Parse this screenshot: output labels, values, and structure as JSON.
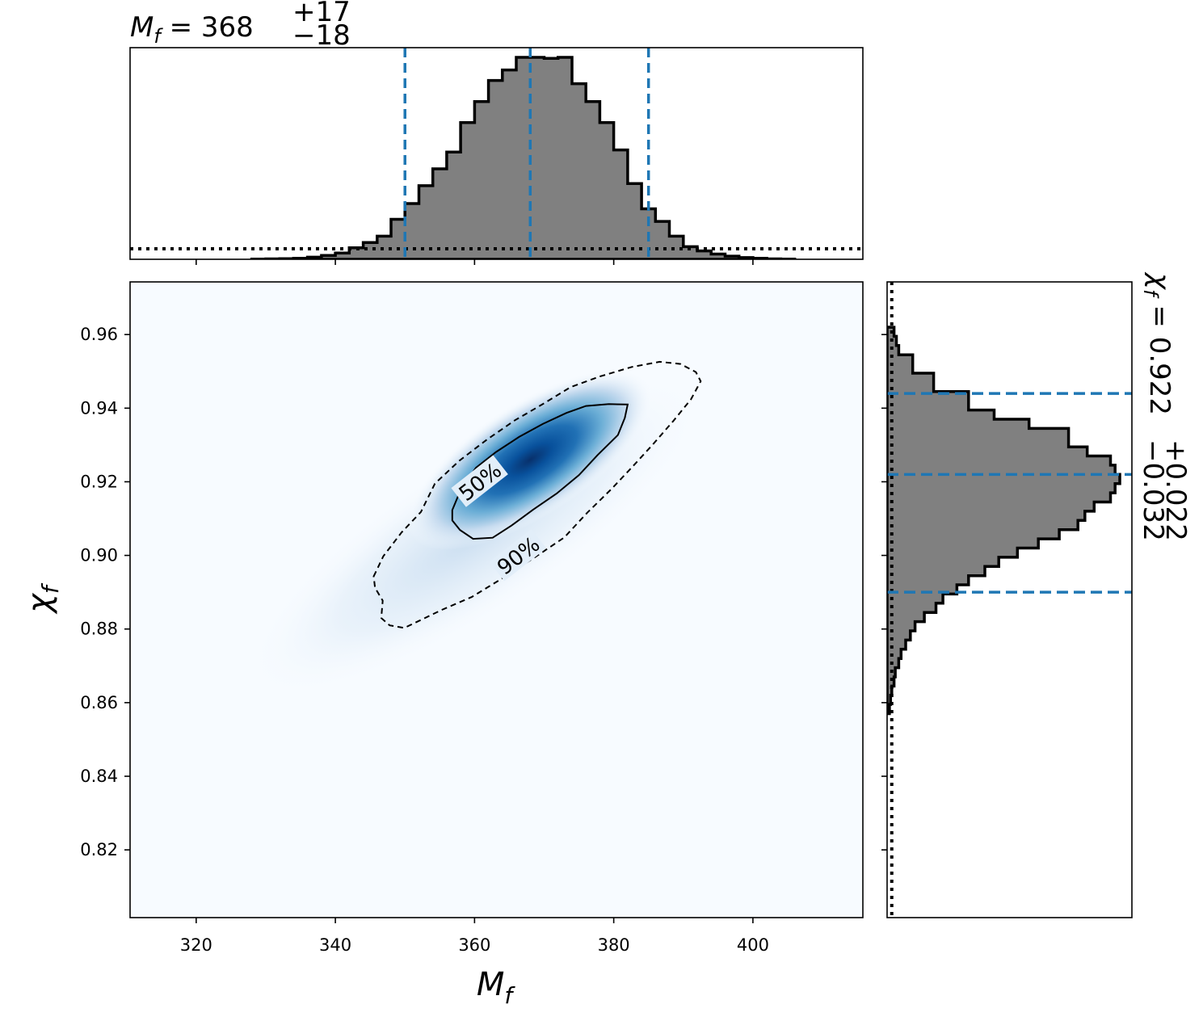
{
  "chart_data": [
    {
      "type": "heatmap",
      "panel": "joint",
      "xlabel_base": "M",
      "xlabel_sub": "f",
      "ylabel_base": "χ",
      "ylabel_sub": "f",
      "xlim": [
        310.5,
        415.8
      ],
      "ylim": [
        0.8016,
        0.9743
      ],
      "xticks": [
        320,
        340,
        360,
        380,
        400
      ],
      "xtick_labels": [
        "320",
        "340",
        "360",
        "380",
        "400"
      ],
      "yticks": [
        0.82,
        0.84,
        0.86,
        0.88,
        0.9,
        0.92,
        0.94,
        0.96
      ],
      "ytick_labels": [
        "0.82",
        "0.84",
        "0.86",
        "0.88",
        "0.90",
        "0.92",
        "0.94",
        "0.96"
      ],
      "colormap": "Blues",
      "density_peak": {
        "x": 368,
        "y": 0.926
      },
      "contours": [
        {
          "level": "50%",
          "linestyle": "solid",
          "points": [
            [
              356.8,
              0.9123
            ],
            [
              358.1,
              0.9182
            ],
            [
              360.2,
              0.9238
            ],
            [
              363.1,
              0.9281
            ],
            [
              366.4,
              0.9322
            ],
            [
              369.8,
              0.9357
            ],
            [
              373.2,
              0.9387
            ],
            [
              376.0,
              0.9406
            ],
            [
              379.3,
              0.9411
            ],
            [
              382.0,
              0.941
            ],
            [
              381.6,
              0.9374
            ],
            [
              380.6,
              0.9327
            ],
            [
              377.7,
              0.9273
            ],
            [
              375.0,
              0.9218
            ],
            [
              371.8,
              0.9168
            ],
            [
              368.4,
              0.9124
            ],
            [
              365.3,
              0.9081
            ],
            [
              362.6,
              0.9048
            ],
            [
              359.8,
              0.9045
            ],
            [
              357.9,
              0.9069
            ],
            [
              356.8,
              0.9095
            ]
          ]
        },
        {
          "level": "90%",
          "linestyle": "dashed",
          "points": [
            [
              345.5,
              0.8943
            ],
            [
              346.9,
              0.8998
            ],
            [
              349.5,
              0.9062
            ],
            [
              352.3,
              0.9118
            ],
            [
              354.3,
              0.9195
            ],
            [
              357.8,
              0.9257
            ],
            [
              361.6,
              0.9312
            ],
            [
              365.8,
              0.9367
            ],
            [
              369.8,
              0.9411
            ],
            [
              373.8,
              0.9457
            ],
            [
              378.0,
              0.9486
            ],
            [
              382.6,
              0.9512
            ],
            [
              386.6,
              0.9526
            ],
            [
              389.6,
              0.952
            ],
            [
              391.8,
              0.9498
            ],
            [
              392.5,
              0.9473
            ],
            [
              391.1,
              0.9424
            ],
            [
              388.6,
              0.9366
            ],
            [
              385.6,
              0.9301
            ],
            [
              382.5,
              0.9237
            ],
            [
              379.6,
              0.9179
            ],
            [
              376.2,
              0.9116
            ],
            [
              372.9,
              0.9049
            ],
            [
              368.6,
              0.8994
            ],
            [
              364.2,
              0.894
            ],
            [
              359.6,
              0.8887
            ],
            [
              355.3,
              0.8852
            ],
            [
              352.0,
              0.8822
            ],
            [
              349.9,
              0.8803
            ],
            [
              347.8,
              0.881
            ],
            [
              346.6,
              0.883
            ],
            [
              346.8,
              0.8877
            ],
            [
              345.7,
              0.8912
            ]
          ]
        }
      ],
      "contour_labels": [
        "50%",
        "90%"
      ]
    },
    {
      "type": "bar",
      "panel": "top-marginal",
      "variable": "M_f",
      "histtype": "step-filled",
      "fill_color": "#808080",
      "edge_color": "#000000",
      "xlim": [
        310.5,
        415.8
      ],
      "bin_edges": [
        328,
        330,
        332,
        334,
        336,
        338,
        340,
        342,
        344,
        346,
        348,
        350,
        352,
        354,
        356,
        358,
        360,
        362,
        364,
        366,
        368,
        370,
        372,
        374,
        376,
        378,
        380,
        382,
        384,
        386,
        388,
        390,
        392,
        394,
        396,
        398,
        400,
        402,
        404,
        406
      ],
      "values": [
        0.001,
        0.002,
        0.003,
        0.005,
        0.01,
        0.018,
        0.03,
        0.055,
        0.08,
        0.11,
        0.19,
        0.265,
        0.35,
        0.43,
        0.51,
        0.65,
        0.75,
        0.85,
        0.9,
        0.96,
        0.96,
        0.955,
        0.96,
        0.835,
        0.75,
        0.65,
        0.52,
        0.36,
        0.24,
        0.18,
        0.11,
        0.06,
        0.04,
        0.025,
        0.015,
        0.008,
        0.005,
        0.002,
        0.001
      ],
      "prior_level": 0.05,
      "prior_style": "dotted",
      "credible_lines": [
        350,
        368,
        385
      ],
      "credible_line_color": "#1f77b4",
      "title_variable_base": "M",
      "title_variable_sub": "f",
      "title_equals": " = ",
      "title_median": "368",
      "title_upper": "+17",
      "title_lower": "−18"
    },
    {
      "type": "bar",
      "panel": "right-marginal",
      "variable": "chi_f",
      "orientation": "horizontal",
      "histtype": "step-filled",
      "fill_color": "#808080",
      "edge_color": "#000000",
      "ylim": [
        0.8016,
        0.9743
      ],
      "bin_edges": [
        0.857,
        0.8595,
        0.862,
        0.8645,
        0.867,
        0.8695,
        0.872,
        0.8745,
        0.877,
        0.8795,
        0.882,
        0.8845,
        0.887,
        0.8895,
        0.892,
        0.8945,
        0.897,
        0.8995,
        0.902,
        0.9045,
        0.907,
        0.9095,
        0.912,
        0.9145,
        0.917,
        0.9195,
        0.922,
        0.9245,
        0.927,
        0.9295,
        0.932,
        0.9345,
        0.937,
        0.9395,
        0.942,
        0.9445,
        0.947,
        0.9495,
        0.952,
        0.9545,
        0.957,
        0.9595,
        0.962
      ],
      "values": [
        0.01,
        0.015,
        0.02,
        0.03,
        0.035,
        0.05,
        0.06,
        0.08,
        0.1,
        0.12,
        0.16,
        0.21,
        0.24,
        0.3,
        0.35,
        0.42,
        0.48,
        0.56,
        0.65,
        0.74,
        0.82,
        0.85,
        0.89,
        0.96,
        0.98,
        1.0,
        0.98,
        0.96,
        0.86,
        0.78,
        0.78,
        0.61,
        0.46,
        0.35,
        0.35,
        0.2,
        0.2,
        0.11,
        0.11,
        0.05,
        0.04,
        0.03
      ],
      "prior_level": 0.02,
      "prior_style": "dotted",
      "credible_lines": [
        0.89,
        0.922,
        0.944
      ],
      "credible_line_color": "#1f77b4",
      "title_variable_base": "χ",
      "title_variable_sub": "f",
      "title_equals": " = ",
      "title_median": "0.922",
      "title_upper": "+0.022",
      "title_lower": "−0.032"
    }
  ]
}
